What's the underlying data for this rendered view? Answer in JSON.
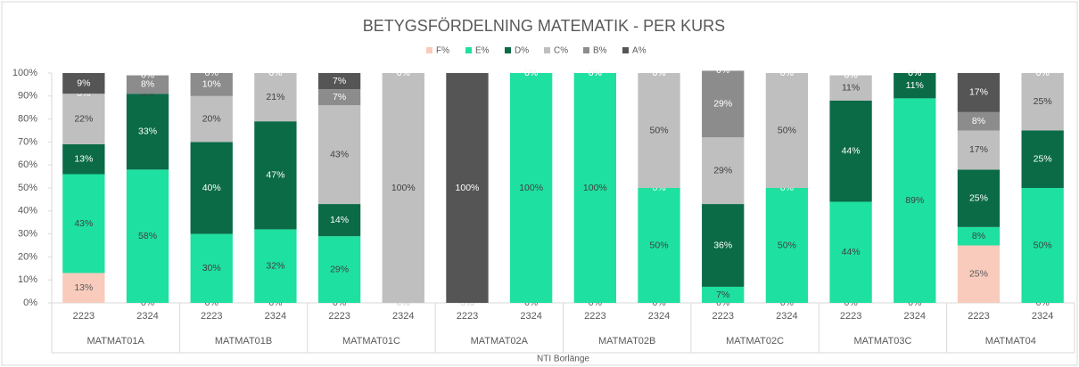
{
  "chart_data": {
    "type": "stacked_bar",
    "title": "BETYGSFÖRDELNING MATEMATIK - PER KURS",
    "categories": [
      "2223",
      "2324",
      "2223",
      "2324",
      "2223",
      "2324",
      "2223",
      "2324",
      "2223",
      "2324",
      "2223",
      "2324",
      "2223",
      "2324",
      "2223",
      "2324"
    ],
    "groups": [
      "MATMAT01A",
      "MATMAT01B",
      "MATMAT01C",
      "MATMAT02A",
      "MATMAT02B",
      "MATMAT02C",
      "MATMAT03C",
      "MATMAT04"
    ],
    "group_label": "NTI Borlänge",
    "ylim": [
      0,
      100
    ],
    "yticks": [
      {
        "value": 0,
        "label": "0%"
      },
      {
        "value": 10,
        "label": "10%"
      },
      {
        "value": 20,
        "label": "20%"
      },
      {
        "value": 30,
        "label": "30%"
      },
      {
        "value": 40,
        "label": "40%"
      },
      {
        "value": 50,
        "label": "50%"
      },
      {
        "value": 60,
        "label": "60%"
      },
      {
        "value": 70,
        "label": "70%"
      },
      {
        "value": 80,
        "label": "80%"
      },
      {
        "value": 90,
        "label": "90%"
      },
      {
        "value": 100,
        "label": "100%"
      }
    ],
    "legend": "top",
    "series": [
      {
        "name": "F%",
        "color": "#f8cbbd",
        "label_color": "#595959",
        "values": [
          13,
          0,
          0,
          0,
          0,
          0,
          0,
          0,
          0,
          0,
          0,
          0,
          0,
          0,
          25,
          0
        ],
        "value_labels": [
          "13%",
          "0%",
          "0%",
          "0%",
          "0%",
          "0%",
          "0%",
          "0%",
          "0%",
          "0%",
          "0%",
          "0%",
          "0%",
          "0%",
          "25%",
          "0%"
        ]
      },
      {
        "name": "E%",
        "color": "#1ee0a0",
        "label_color": "#404040",
        "values": [
          43,
          58,
          30,
          32,
          29,
          0,
          0,
          100,
          100,
          50,
          7,
          50,
          44,
          89,
          8,
          50
        ],
        "value_labels": [
          "43%",
          "58%",
          "30%",
          "32%",
          "29%",
          "0%",
          "0%",
          "100%",
          "100%",
          "50%",
          "7%",
          "50%",
          "44%",
          "89%",
          "8%",
          "50%"
        ]
      },
      {
        "name": "D%",
        "color": "#0b6b47",
        "label_color": "#ffffff",
        "values": [
          13,
          33,
          40,
          47,
          14,
          0,
          0,
          0,
          0,
          0,
          36,
          0,
          44,
          11,
          25,
          25
        ],
        "value_labels": [
          "13%",
          "33%",
          "40%",
          "47%",
          "14%",
          "0%",
          "0%",
          "0%",
          "0%",
          "0%",
          "36%",
          "0%",
          "44%",
          "11%",
          "25%",
          "25%"
        ]
      },
      {
        "name": "C%",
        "color": "#bfbfbf",
        "label_color": "#404040",
        "values": [
          22,
          0,
          20,
          21,
          43,
          100,
          0,
          0,
          0,
          50,
          29,
          50,
          11,
          0,
          17,
          25
        ],
        "value_labels": [
          "22%",
          "0%",
          "20%",
          "21%",
          "43%",
          "100%",
          "0%",
          "0%",
          "0%",
          "50%",
          "29%",
          "50%",
          "11%",
          "0%",
          "17%",
          "25%"
        ]
      },
      {
        "name": "B%",
        "color": "#8c8c8c",
        "label_color": "#ffffff",
        "values": [
          0,
          8,
          10,
          0,
          7,
          0,
          0,
          0,
          0,
          0,
          29,
          0,
          0,
          0,
          8,
          0
        ],
        "value_labels": [
          "0%",
          "8%",
          "10%",
          "0%",
          "7%",
          "0%",
          "0%",
          "0%",
          "0%",
          "0%",
          "29%",
          "0%",
          "0%",
          "0%",
          "8%",
          "0%"
        ]
      },
      {
        "name": "A%",
        "color": "#555555",
        "label_color": "#ffffff",
        "values": [
          9,
          0,
          0,
          0,
          7,
          0,
          100,
          0,
          0,
          0,
          0,
          0,
          0,
          0,
          17,
          0
        ],
        "value_labels": [
          "9%",
          "0%",
          "0%",
          "0%",
          "7%",
          "0%",
          "100%",
          "0%",
          "0%",
          "0%",
          "0%",
          "0%",
          "0%",
          "0%",
          "17%",
          "0%"
        ]
      }
    ]
  }
}
